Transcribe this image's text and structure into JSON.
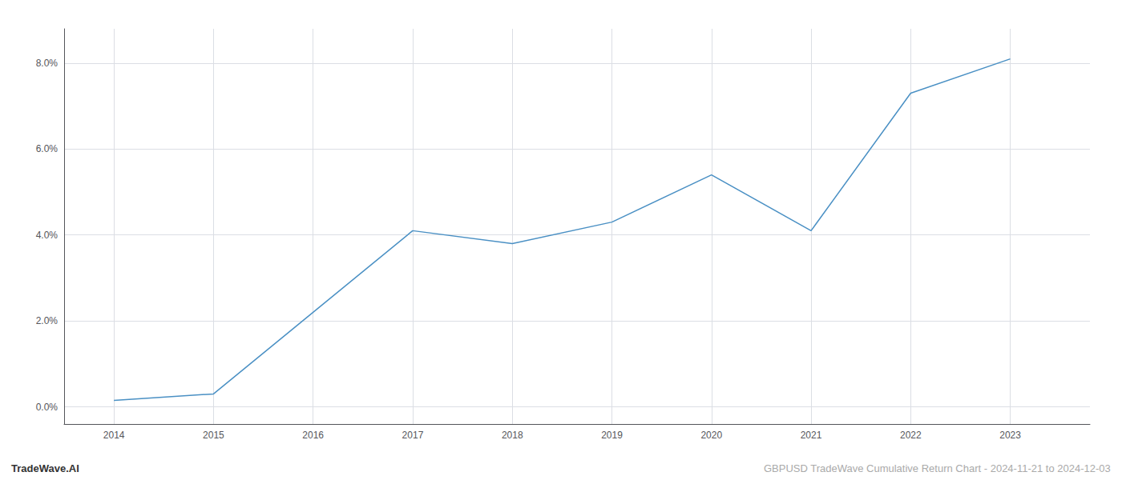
{
  "chart_data": {
    "type": "line",
    "x": [
      2014,
      2015,
      2016,
      2017,
      2018,
      2019,
      2020,
      2021,
      2022,
      2023
    ],
    "values": [
      0.0015,
      0.003,
      0.022,
      0.041,
      0.038,
      0.043,
      0.054,
      0.041,
      0.073,
      0.081
    ],
    "color": "#4a90c4",
    "xlim": [
      2013.5,
      2023.8
    ],
    "xticks": [
      2014,
      2015,
      2016,
      2017,
      2018,
      2019,
      2020,
      2021,
      2022,
      2023
    ],
    "ylim": [
      -0.004,
      0.088
    ],
    "yticks": [
      {
        "value": 0.0,
        "label": "0.0%"
      },
      {
        "value": 0.02,
        "label": "2.0%"
      },
      {
        "value": 0.04,
        "label": "4.0%"
      },
      {
        "value": 0.06,
        "label": "6.0%"
      },
      {
        "value": 0.08,
        "label": "8.0%"
      }
    ],
    "grid": true,
    "annotations": [
      "TradeWave.AI",
      "GBPUSD TradeWave Cumulative Return Chart - 2024-11-21 to 2024-12-03"
    ]
  }
}
